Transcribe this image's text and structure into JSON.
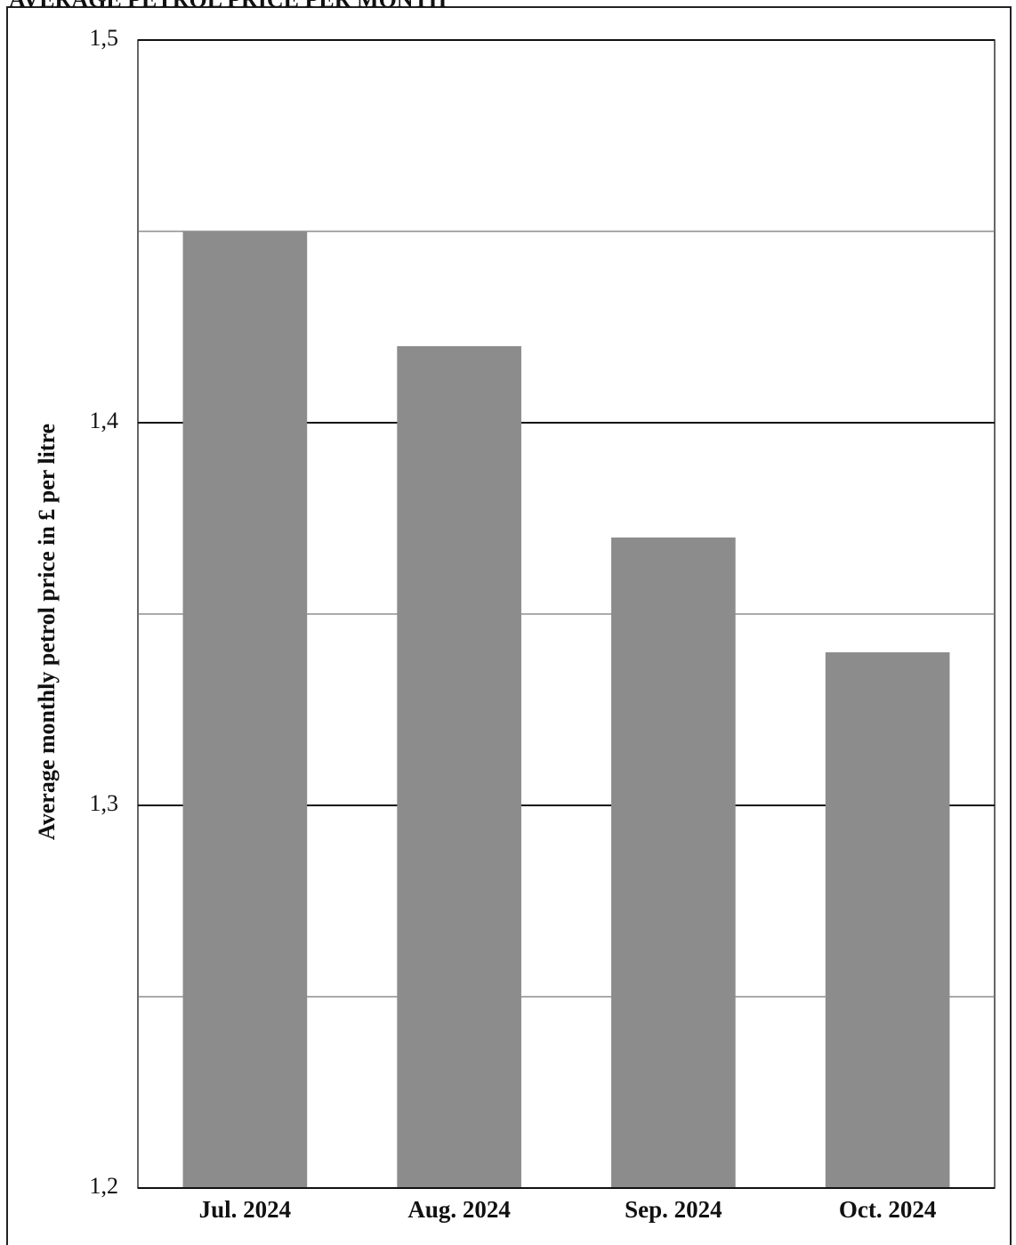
{
  "chart_data": {
    "type": "bar",
    "title": "AVERAGE PETROL PRICE PER MONTH",
    "y_label": "Average monthly petrol price in £ per litre",
    "categories": [
      "Jul. 2024",
      "Aug. 2024",
      "Sep. 2024",
      "Oct. 2024"
    ],
    "values": [
      1.45,
      1.42,
      1.37,
      1.34
    ],
    "color": "#8c8c8c",
    "ylim": [
      1.2,
      1.5
    ],
    "yticks": [
      {
        "value": 1.2,
        "label": "1,2"
      },
      {
        "value": 1.3,
        "label": "1,3"
      },
      {
        "value": 1.4,
        "label": "1,4"
      },
      {
        "value": 1.5,
        "label": "1,5"
      }
    ],
    "minor_yticks": [
      1.25,
      1.35,
      1.45
    ],
    "grid": true
  }
}
